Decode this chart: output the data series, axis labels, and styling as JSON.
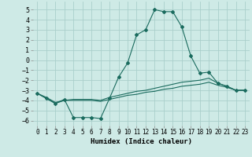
{
  "xlabel": "Humidex (Indice chaleur)",
  "background_color": "#ceeae6",
  "grid_color": "#aacfcb",
  "line_color": "#1a6b5e",
  "x_ticks": [
    0,
    1,
    2,
    3,
    4,
    5,
    6,
    7,
    8,
    9,
    10,
    11,
    12,
    13,
    14,
    15,
    16,
    17,
    18,
    19,
    20,
    21,
    22,
    23
  ],
  "ylim": [
    -6.5,
    5.8
  ],
  "xlim": [
    -0.5,
    23.5
  ],
  "yticks": [
    -6,
    -5,
    -4,
    -3,
    -2,
    -1,
    0,
    1,
    2,
    3,
    4,
    5
  ],
  "line1_x": [
    0,
    1,
    2,
    3,
    4,
    5,
    6,
    7,
    8,
    9,
    10,
    11,
    12,
    13,
    14,
    15,
    16,
    17,
    18,
    19,
    20,
    21,
    22,
    23
  ],
  "line1_y": [
    -3.3,
    -3.8,
    -4.3,
    -3.9,
    -5.7,
    -5.7,
    -5.7,
    -5.8,
    -3.8,
    -1.7,
    -0.3,
    2.5,
    3.0,
    5.0,
    4.8,
    4.8,
    3.3,
    0.4,
    -1.3,
    -1.2,
    -2.3,
    -2.6,
    -3.0,
    -3.0
  ],
  "line2_x": [
    0,
    1,
    2,
    3,
    4,
    5,
    6,
    7,
    8,
    9,
    10,
    11,
    12,
    13,
    14,
    15,
    16,
    17,
    18,
    19,
    20,
    21,
    22,
    23
  ],
  "line2_y": [
    -3.3,
    -3.7,
    -4.2,
    -4.0,
    -3.9,
    -3.9,
    -3.9,
    -4.0,
    -3.7,
    -3.5,
    -3.3,
    -3.1,
    -3.0,
    -2.8,
    -2.6,
    -2.4,
    -2.2,
    -2.1,
    -2.0,
    -1.8,
    -2.3,
    -2.6,
    -3.0,
    -3.0
  ],
  "line3_x": [
    0,
    1,
    2,
    3,
    4,
    5,
    6,
    7,
    8,
    9,
    10,
    11,
    12,
    13,
    14,
    15,
    16,
    17,
    18,
    19,
    20,
    21,
    22,
    23
  ],
  "line3_y": [
    -3.3,
    -3.8,
    -4.3,
    -4.0,
    -4.0,
    -4.0,
    -4.0,
    -4.1,
    -3.9,
    -3.7,
    -3.5,
    -3.4,
    -3.2,
    -3.1,
    -2.9,
    -2.8,
    -2.6,
    -2.5,
    -2.4,
    -2.2,
    -2.5,
    -2.7,
    -3.0,
    -3.0
  ],
  "tick_fontsize": 5.5,
  "xlabel_fontsize": 6.5,
  "marker_size": 2.0
}
